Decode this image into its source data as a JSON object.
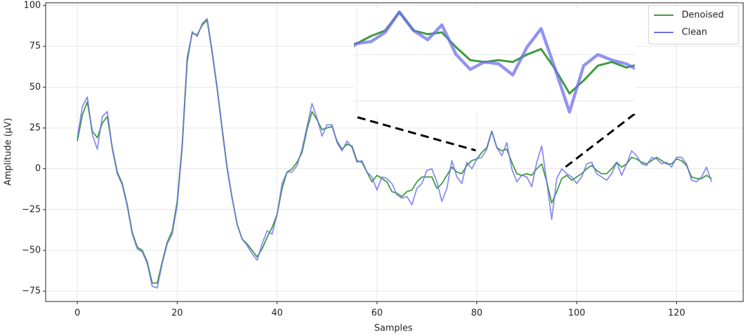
{
  "chart_data": {
    "type": "line",
    "xlabel": "Samples",
    "ylabel": "Amplitude (μV)",
    "x": [
      0,
      1,
      2,
      3,
      4,
      5,
      6,
      7,
      8,
      9,
      10,
      11,
      12,
      13,
      14,
      15,
      16,
      17,
      18,
      19,
      20,
      21,
      22,
      23,
      24,
      25,
      26,
      27,
      28,
      29,
      30,
      31,
      32,
      33,
      34,
      35,
      36,
      37,
      38,
      39,
      40,
      41,
      42,
      43,
      44,
      45,
      46,
      47,
      48,
      49,
      50,
      51,
      52,
      53,
      54,
      55,
      56,
      57,
      58,
      59,
      60,
      61,
      62,
      63,
      64,
      65,
      66,
      67,
      68,
      69,
      70,
      71,
      72,
      73,
      74,
      75,
      76,
      77,
      78,
      79,
      80,
      81,
      82,
      83,
      84,
      85,
      86,
      87,
      88,
      89,
      90,
      91,
      92,
      93,
      94,
      95,
      96,
      97,
      98,
      99,
      100,
      101,
      102,
      103,
      104,
      105,
      106,
      107,
      108,
      109,
      110,
      111,
      112,
      113,
      114,
      115,
      116,
      117,
      118,
      119,
      120,
      121,
      122,
      123,
      124,
      125,
      126,
      127
    ],
    "series": [
      {
        "name": "Denoised",
        "color": "#3d9a3d",
        "values": [
          17,
          33,
          41,
          23,
          19,
          28,
          32,
          13,
          -2,
          -9,
          -22,
          -39,
          -48,
          -50,
          -57,
          -70,
          -70,
          -57,
          -45,
          -38,
          -20,
          15,
          68,
          83,
          82,
          88,
          91,
          71,
          49,
          24,
          0,
          -18,
          -34,
          -43,
          -46,
          -50,
          -54,
          -49,
          -42,
          -36,
          -28,
          -12,
          -2,
          0,
          4,
          10,
          24,
          35,
          30,
          24,
          25,
          26,
          17,
          12,
          15,
          14,
          5,
          4,
          -2,
          -8,
          -4,
          -6,
          -8,
          -14,
          -15,
          -17,
          -14,
          -13,
          -8,
          -5,
          -5,
          -5,
          -12,
          -9,
          -4,
          1,
          -2,
          -3,
          2,
          5,
          6,
          10,
          13,
          23,
          13,
          11,
          12,
          4,
          -3,
          -4,
          -3,
          -4,
          0,
          3,
          -8,
          -21,
          -14,
          -6,
          -4,
          -7,
          -5,
          -3,
          0,
          2,
          -1,
          -3,
          -3,
          0,
          4,
          1,
          3,
          7,
          6,
          4,
          3,
          5,
          7,
          5,
          3,
          3,
          6,
          5,
          2,
          -5,
          -6,
          -6,
          -4,
          -6
        ]
      },
      {
        "name": "Clean",
        "color": "#6f6fee",
        "values": [
          19,
          38,
          44,
          21,
          12,
          32,
          35,
          12,
          -3,
          -10,
          -23,
          -40,
          -49,
          -51,
          -58,
          -72,
          -73,
          -58,
          -46,
          -40,
          -22,
          13,
          65,
          84,
          81,
          89,
          92,
          72,
          50,
          25,
          1,
          -18,
          -34,
          -43,
          -47,
          -52,
          -56,
          -46,
          -38,
          -40,
          -28,
          -9,
          -2,
          -2,
          2,
          12,
          26,
          40,
          31,
          20,
          27,
          27,
          16,
          11,
          17,
          13,
          4,
          5,
          -2,
          -5,
          -13,
          -5,
          -6,
          -9,
          -16,
          -18,
          -17,
          -22,
          -12,
          -9,
          -1,
          0,
          -8,
          -20,
          -12,
          5,
          -5,
          -9,
          4,
          0,
          6,
          7,
          12,
          23,
          13,
          8,
          16,
          0,
          -8,
          -4,
          -5,
          -11,
          4,
          14,
          -8,
          -31,
          -6,
          0,
          -3,
          -5,
          -9,
          -5,
          3,
          4,
          -3,
          -5,
          -7,
          -3,
          4,
          -4,
          3,
          11,
          8,
          3,
          2,
          7,
          6,
          3,
          4,
          1,
          7,
          7,
          3,
          -7,
          -8,
          -5,
          1,
          -8
        ]
      }
    ],
    "xlim": [
      -6.35,
      133.35
    ],
    "ylim": [
      -81.3,
      101.7
    ],
    "xticks": [
      0,
      20,
      40,
      60,
      80,
      100,
      120
    ],
    "yticks": [
      {
        "value": -75,
        "label": "−75"
      },
      {
        "value": -50,
        "label": "−50"
      },
      {
        "value": -25,
        "label": "−25"
      },
      0,
      25,
      50,
      75,
      100
    ],
    "grid": true,
    "legend": "upper right",
    "inset": {
      "xlim": [
        79.8,
        99.6
      ],
      "ylim": [
        -32,
        25
      ]
    }
  }
}
